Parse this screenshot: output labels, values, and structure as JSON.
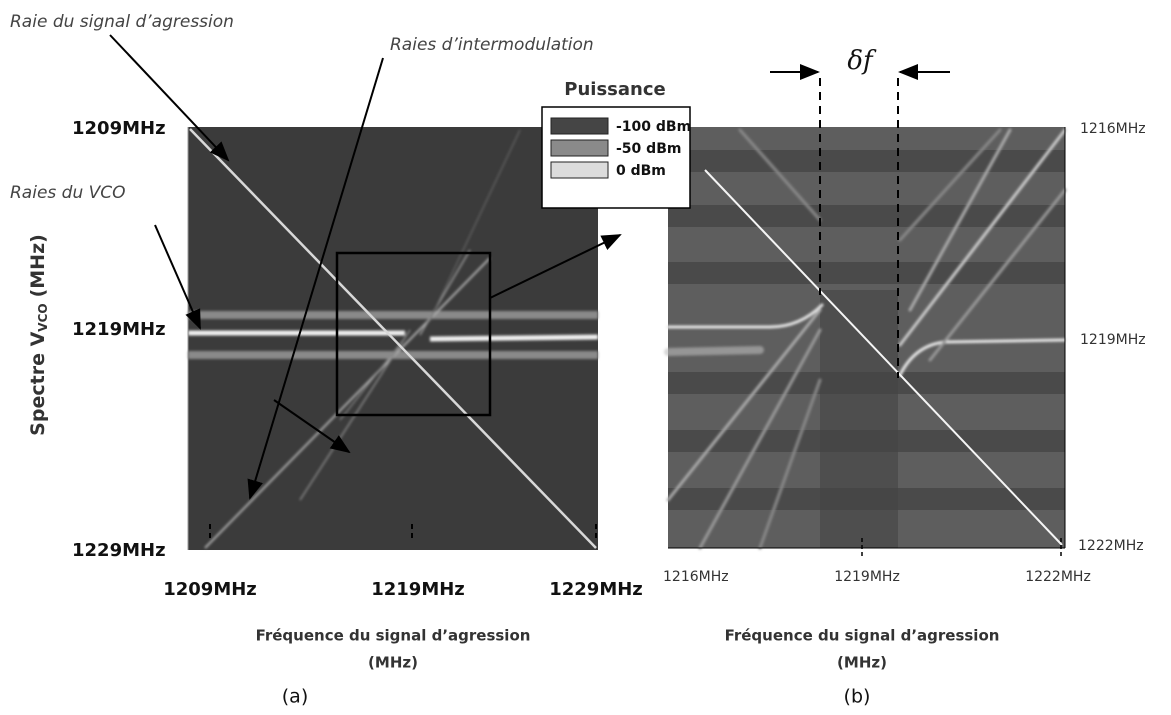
{
  "annotations": {
    "aggressor_line": "Raie du signal d’agression",
    "intermod_lines": "Raies d’intermodulation",
    "vco_lines": "Raies du VCO"
  },
  "panel_a": {
    "y_axis_title": {
      "main": "Spectre V",
      "subscript": "VCO",
      "unit": "(MHz)"
    },
    "y_tick_labels": [
      "1209MHz",
      "1219MHz",
      "1229MHz"
    ],
    "x_tick_labels": [
      "1209MHz",
      "1219MHz",
      "1229MHz"
    ],
    "x_axis_title": "Fréquence du signal d’agression",
    "x_axis_unit": "(MHz)",
    "caption": "(a)"
  },
  "legend": {
    "title": "Puissance",
    "entries": [
      "-100 dBm",
      "-50 dBm",
      "0 dBm"
    ]
  },
  "panel_b": {
    "delta_label": "δf",
    "y_tick_labels": [
      "1216MHz",
      "1219MHz",
      "1222MHz"
    ],
    "x_tick_labels": [
      "1216MHz",
      "1219MHz",
      "1222MHz"
    ],
    "x_axis_title": "Fréquence du signal d’agression",
    "x_axis_unit": "(MHz)",
    "caption": "(b)"
  }
}
